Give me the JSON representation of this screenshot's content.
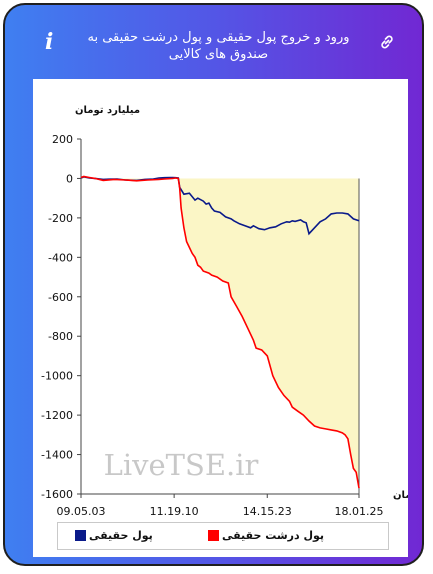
{
  "header": {
    "title": "ورود و خروج پول حقیقی و پول درشت حقیقی به صندوق های کالایی",
    "info_icon": "info-icon",
    "link_icon": "link-icon"
  },
  "colors": {
    "gradient_start": "#3f7ff1",
    "gradient_end": "#7128d3",
    "real_money": "#0a1a8a",
    "big_real_money": "#ff0000",
    "fill_area": "#fbf6c6"
  },
  "watermark": "LiveTSE.ir",
  "chart_data": {
    "type": "line",
    "ylabel": "میلیارد تومان",
    "xlabel": "زمان",
    "ylim": [
      -1600,
      200
    ],
    "yticks": [
      200,
      0,
      -200,
      -400,
      -600,
      -800,
      -1000,
      -1200,
      -1400,
      -1600
    ],
    "xlim": [
      0,
      100
    ],
    "xticks": [
      {
        "x": 0,
        "label": "09.05.03"
      },
      {
        "x": 33.5,
        "label": "11.19.10"
      },
      {
        "x": 67,
        "label": "14.15.23"
      },
      {
        "x": 100,
        "label": "18.01.25"
      }
    ],
    "grid": false,
    "legend_position": "bottom",
    "series": [
      {
        "name": "پول حقیقی",
        "color": "#0a1a8a",
        "x": [
          0,
          1,
          3,
          5,
          8,
          10,
          13,
          16,
          20,
          23,
          26,
          28,
          30,
          32,
          33,
          34,
          35,
          35.5,
          37,
          39,
          41,
          42,
          44,
          45,
          46,
          47,
          48,
          50,
          52,
          54,
          55,
          57,
          59,
          61,
          62,
          64,
          66,
          68,
          70,
          72,
          74,
          75,
          76,
          77,
          79,
          80,
          81,
          82,
          84,
          86,
          88,
          90,
          92,
          94,
          96,
          98,
          100
        ],
        "y": [
          2,
          8,
          2,
          0,
          -5,
          -4,
          -3,
          -8,
          -10,
          -5,
          -3,
          2,
          4,
          5,
          5,
          4,
          2,
          -45,
          -80,
          -75,
          -110,
          -100,
          -115,
          -130,
          -125,
          -150,
          -165,
          -172,
          -195,
          -205,
          -215,
          -230,
          -240,
          -250,
          -240,
          -255,
          -260,
          -250,
          -245,
          -230,
          -220,
          -222,
          -215,
          -218,
          -210,
          -220,
          -225,
          -280,
          -250,
          -220,
          -205,
          -180,
          -175,
          -175,
          -180,
          -205,
          -215
        ]
      },
      {
        "name": "پول درشت حقیقی",
        "color": "#ff0000",
        "x": [
          0,
          1,
          3,
          5,
          8,
          12,
          16,
          20,
          24,
          28,
          30,
          33,
          34,
          35,
          35.5,
          36,
          37,
          38,
          40,
          41,
          42,
          43,
          44,
          46,
          47,
          49,
          51,
          53,
          54,
          56,
          58,
          60,
          62,
          63,
          65,
          67,
          69,
          71,
          73,
          75,
          76,
          78,
          80,
          82,
          84,
          86,
          88,
          90,
          92,
          94,
          95,
          96,
          97,
          98,
          99,
          100
        ],
        "y": [
          5,
          10,
          5,
          0,
          -10,
          -5,
          -8,
          -12,
          -8,
          -5,
          -3,
          0,
          2,
          0,
          -50,
          -150,
          -250,
          -320,
          -380,
          -400,
          -440,
          -450,
          -470,
          -480,
          -490,
          -500,
          -520,
          -530,
          -600,
          -650,
          -700,
          -760,
          -820,
          -860,
          -870,
          -900,
          -1000,
          -1060,
          -1100,
          -1130,
          -1160,
          -1180,
          -1200,
          -1230,
          -1255,
          -1265,
          -1270,
          -1275,
          -1280,
          -1290,
          -1300,
          -1320,
          -1400,
          -1470,
          -1490,
          -1570
        ]
      }
    ]
  },
  "legend": [
    {
      "label": "پول حقیقی",
      "color": "#0a1a8a"
    },
    {
      "label": "پول درشت حقیقی",
      "color": "#ff0000"
    }
  ]
}
